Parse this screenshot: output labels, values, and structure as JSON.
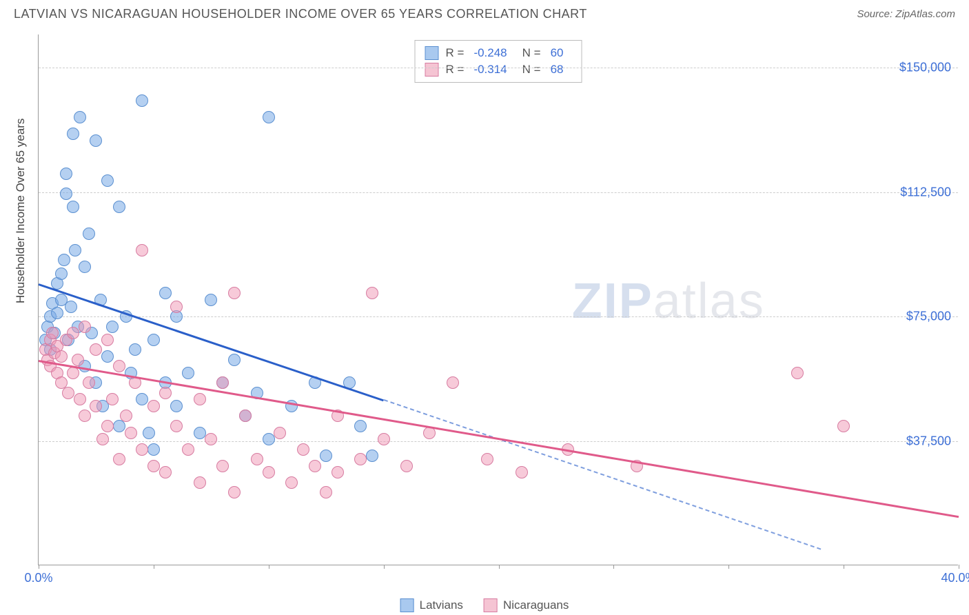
{
  "header": {
    "title": "LATVIAN VS NICARAGUAN HOUSEHOLDER INCOME OVER 65 YEARS CORRELATION CHART",
    "source": "Source: ZipAtlas.com"
  },
  "chart": {
    "type": "scatter",
    "ylabel": "Householder Income Over 65 years",
    "xlim": [
      0,
      40
    ],
    "ylim": [
      0,
      160000
    ],
    "xtick_labels": {
      "start": "0.0%",
      "end": "40.0%"
    },
    "xticks": [
      0,
      5,
      10,
      15,
      20,
      25,
      30,
      35,
      40
    ],
    "yticks": [
      37500,
      75000,
      112500,
      150000
    ],
    "ytick_labels": [
      "$37,500",
      "$75,000",
      "$112,500",
      "$150,000"
    ],
    "grid_color": "#cccccc",
    "background_color": "#ffffff",
    "axis_color": "#999999",
    "tick_label_color": "#3d6fd6",
    "label_fontsize": 17,
    "series": [
      {
        "name": "Latvians",
        "color_fill": "rgba(120,170,230,0.55)",
        "color_stroke": "#5a8fd0",
        "swatch_fill": "#a9c9ef",
        "swatch_border": "#5a8fd0",
        "trend_color": "#2a5fc9",
        "R": "-0.248",
        "N": "60",
        "trend": {
          "x1": 0,
          "y1": 85000,
          "x2": 15,
          "y2": 50000,
          "extend_x": 34,
          "extend_y": 5000
        },
        "points": [
          [
            0.3,
            68000
          ],
          [
            0.4,
            72000
          ],
          [
            0.5,
            65000
          ],
          [
            0.5,
            75000
          ],
          [
            0.6,
            79000
          ],
          [
            0.7,
            70000
          ],
          [
            0.8,
            76000
          ],
          [
            0.8,
            85000
          ],
          [
            1.0,
            80000
          ],
          [
            1.0,
            88000
          ],
          [
            1.1,
            92000
          ],
          [
            1.2,
            112000
          ],
          [
            1.2,
            118000
          ],
          [
            1.3,
            68000
          ],
          [
            1.4,
            78000
          ],
          [
            1.5,
            130000
          ],
          [
            1.5,
            108000
          ],
          [
            1.6,
            95000
          ],
          [
            1.7,
            72000
          ],
          [
            1.8,
            135000
          ],
          [
            2.0,
            90000
          ],
          [
            2.0,
            60000
          ],
          [
            2.2,
            100000
          ],
          [
            2.3,
            70000
          ],
          [
            2.5,
            128000
          ],
          [
            2.5,
            55000
          ],
          [
            2.7,
            80000
          ],
          [
            2.8,
            48000
          ],
          [
            3.0,
            116000
          ],
          [
            3.0,
            63000
          ],
          [
            3.2,
            72000
          ],
          [
            3.5,
            108000
          ],
          [
            3.5,
            42000
          ],
          [
            3.8,
            75000
          ],
          [
            4.0,
            58000
          ],
          [
            4.2,
            65000
          ],
          [
            4.5,
            50000
          ],
          [
            4.5,
            140000
          ],
          [
            4.8,
            40000
          ],
          [
            5.0,
            68000
          ],
          [
            5.0,
            35000
          ],
          [
            5.5,
            55000
          ],
          [
            5.5,
            82000
          ],
          [
            6.0,
            48000
          ],
          [
            6.0,
            75000
          ],
          [
            6.5,
            58000
          ],
          [
            7.0,
            40000
          ],
          [
            7.5,
            80000
          ],
          [
            8.0,
            55000
          ],
          [
            8.5,
            62000
          ],
          [
            9.0,
            45000
          ],
          [
            9.5,
            52000
          ],
          [
            10.0,
            135000
          ],
          [
            10.0,
            38000
          ],
          [
            11.0,
            48000
          ],
          [
            12.0,
            55000
          ],
          [
            12.5,
            33000
          ],
          [
            13.5,
            55000
          ],
          [
            14.0,
            42000
          ],
          [
            14.5,
            33000
          ]
        ]
      },
      {
        "name": "Nicaraguans",
        "color_fill": "rgba(240,150,180,0.5)",
        "color_stroke": "#d77ba0",
        "swatch_fill": "#f5c4d3",
        "swatch_border": "#d77ba0",
        "trend_color": "#e05a8a",
        "R": "-0.314",
        "N": "68",
        "trend": {
          "x1": 0,
          "y1": 62000,
          "x2": 40,
          "y2": 15000,
          "extend_x": 40,
          "extend_y": 15000
        },
        "points": [
          [
            0.3,
            65000
          ],
          [
            0.4,
            62000
          ],
          [
            0.5,
            68000
          ],
          [
            0.5,
            60000
          ],
          [
            0.6,
            70000
          ],
          [
            0.7,
            64000
          ],
          [
            0.8,
            66000
          ],
          [
            0.8,
            58000
          ],
          [
            1.0,
            63000
          ],
          [
            1.0,
            55000
          ],
          [
            1.2,
            68000
          ],
          [
            1.3,
            52000
          ],
          [
            1.5,
            70000
          ],
          [
            1.5,
            58000
          ],
          [
            1.7,
            62000
          ],
          [
            1.8,
            50000
          ],
          [
            2.0,
            72000
          ],
          [
            2.0,
            45000
          ],
          [
            2.2,
            55000
          ],
          [
            2.5,
            48000
          ],
          [
            2.5,
            65000
          ],
          [
            2.8,
            38000
          ],
          [
            3.0,
            68000
          ],
          [
            3.0,
            42000
          ],
          [
            3.2,
            50000
          ],
          [
            3.5,
            32000
          ],
          [
            3.5,
            60000
          ],
          [
            3.8,
            45000
          ],
          [
            4.0,
            40000
          ],
          [
            4.2,
            55000
          ],
          [
            4.5,
            95000
          ],
          [
            4.5,
            35000
          ],
          [
            5.0,
            30000
          ],
          [
            5.0,
            48000
          ],
          [
            5.5,
            52000
          ],
          [
            5.5,
            28000
          ],
          [
            6.0,
            42000
          ],
          [
            6.0,
            78000
          ],
          [
            6.5,
            35000
          ],
          [
            7.0,
            25000
          ],
          [
            7.0,
            50000
          ],
          [
            7.5,
            38000
          ],
          [
            8.0,
            30000
          ],
          [
            8.0,
            55000
          ],
          [
            8.5,
            82000
          ],
          [
            8.5,
            22000
          ],
          [
            9.0,
            45000
          ],
          [
            9.5,
            32000
          ],
          [
            10.0,
            28000
          ],
          [
            10.5,
            40000
          ],
          [
            11.0,
            25000
          ],
          [
            11.5,
            35000
          ],
          [
            12.0,
            30000
          ],
          [
            12.5,
            22000
          ],
          [
            13.0,
            45000
          ],
          [
            13.0,
            28000
          ],
          [
            14.0,
            32000
          ],
          [
            14.5,
            82000
          ],
          [
            15.0,
            38000
          ],
          [
            16.0,
            30000
          ],
          [
            17.0,
            40000
          ],
          [
            18.0,
            55000
          ],
          [
            19.5,
            32000
          ],
          [
            21.0,
            28000
          ],
          [
            23.0,
            35000
          ],
          [
            26.0,
            30000
          ],
          [
            33.0,
            58000
          ],
          [
            35.0,
            42000
          ]
        ]
      }
    ],
    "watermark": {
      "part1": "ZIP",
      "part2": "atlas"
    }
  },
  "legend": {
    "r_label": "R =",
    "n_label": "N ="
  }
}
